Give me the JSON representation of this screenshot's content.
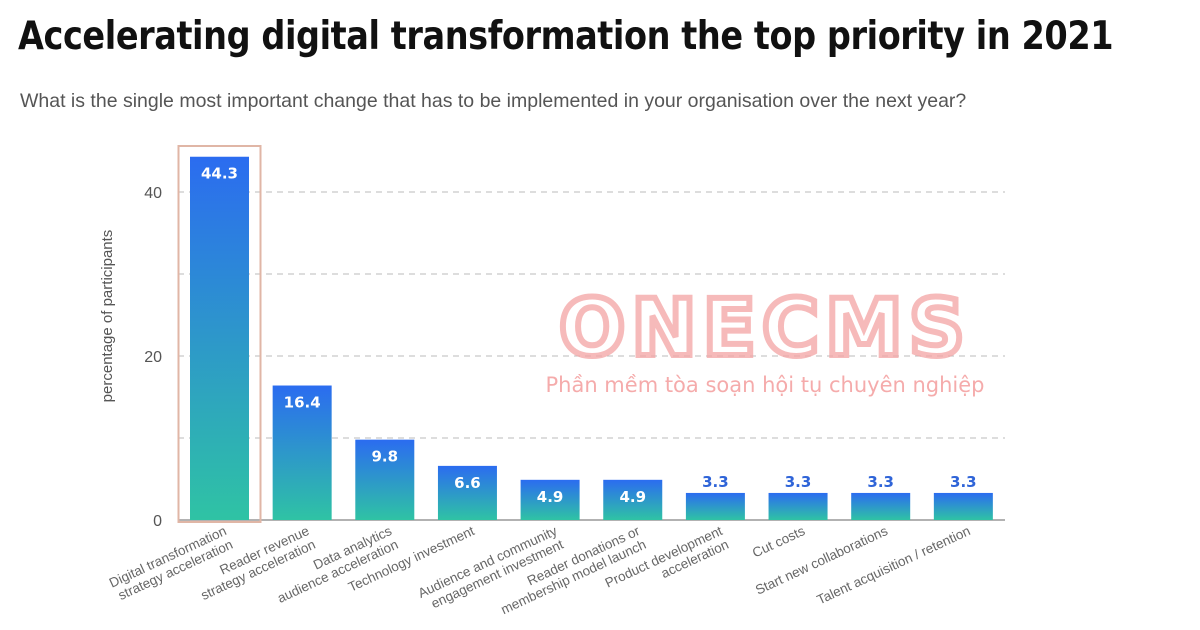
{
  "title": "Accelerating digital transformation the top priority in 2021",
  "subtitle": "What is the single most important change that has to be implemented in your organisation over the next year?",
  "watermark": {
    "logo": "ONECMS",
    "tagline": "Phần mềm tòa soạn hội tụ chuyên nghiệp",
    "color": "#f4a3a3"
  },
  "chart_data": {
    "type": "bar",
    "title": "Accelerating digital transformation the top priority in 2021",
    "subtitle": "What is the single most important change that has to be implemented in your organisation over the next year?",
    "xlabel": "",
    "ylabel": "percentage of participants",
    "ylim": [
      0,
      45
    ],
    "yticks": [
      0,
      20,
      40
    ],
    "grid": "dashed horizontal every 10",
    "categories": [
      "Digital transformation\nstrategy acceleration",
      "Reader revenue\nstrategy acceleration",
      "Data analytics\naudience acceleration",
      "Technology investment",
      "Audience and community\nengagement investment",
      "Reader donations or\nmembership model launch",
      "Product development\nacceleration",
      "Cut costs",
      "Start new collaborations",
      "Talent acquisition / retention"
    ],
    "values": [
      44.3,
      16.4,
      9.8,
      6.6,
      4.9,
      4.9,
      3.3,
      3.3,
      3.3,
      3.3
    ],
    "highlighted_category_index": 0,
    "colors": {
      "bar_top": "#2b6cf0",
      "bar_bottom": "#2fc3a4",
      "highlight_border": "#e0b6a6",
      "label_outside": "#2f64d8",
      "label_inside": "#ffffff"
    }
  }
}
